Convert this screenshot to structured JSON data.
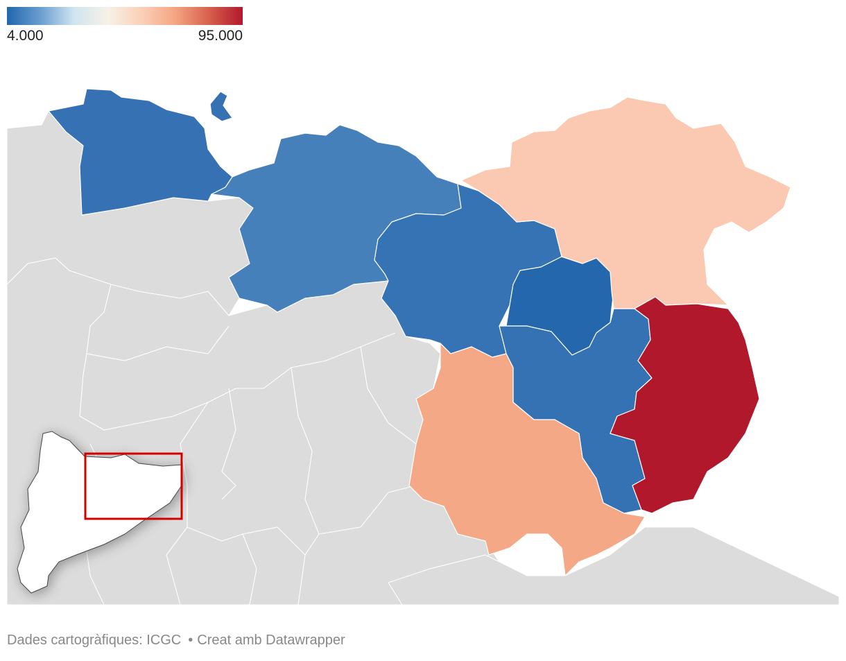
{
  "legend": {
    "min_label": "4.000",
    "max_label": "95.000",
    "gradient_colors": [
      "#2166ac",
      "#6a9ed0",
      "#d1e5f0",
      "#f7f1e6",
      "#fbd0b9",
      "#f4a582",
      "#d6604d",
      "#b2182b"
    ]
  },
  "footer": {
    "source": "Dades cartogràfiques: ICGC",
    "separator": "•",
    "credit": "Creat amb Datawrapper"
  },
  "map": {
    "background_color": "#dcdcdc",
    "border_color": "#ffffff",
    "inset_highlight_color": "#d40000",
    "regions": [
      {
        "id": "west-1",
        "value_level": 0.08,
        "color": "#3571b3"
      },
      {
        "id": "west-2",
        "value_level": 0.15,
        "color": "#4580bb"
      },
      {
        "id": "center",
        "value_level": 0.1,
        "color": "#3573b4"
      },
      {
        "id": "center-east",
        "value_level": 0.04,
        "color": "#2567ac"
      },
      {
        "id": "south-center",
        "value_level": 0.1,
        "color": "#3572b4"
      },
      {
        "id": "northeast",
        "value_level": 0.65,
        "color": "#fbc9b1"
      },
      {
        "id": "south",
        "value_level": 0.75,
        "color": "#f4a886"
      },
      {
        "id": "east-coast",
        "value_level": 1.0,
        "color": "#b2182b"
      }
    ]
  }
}
